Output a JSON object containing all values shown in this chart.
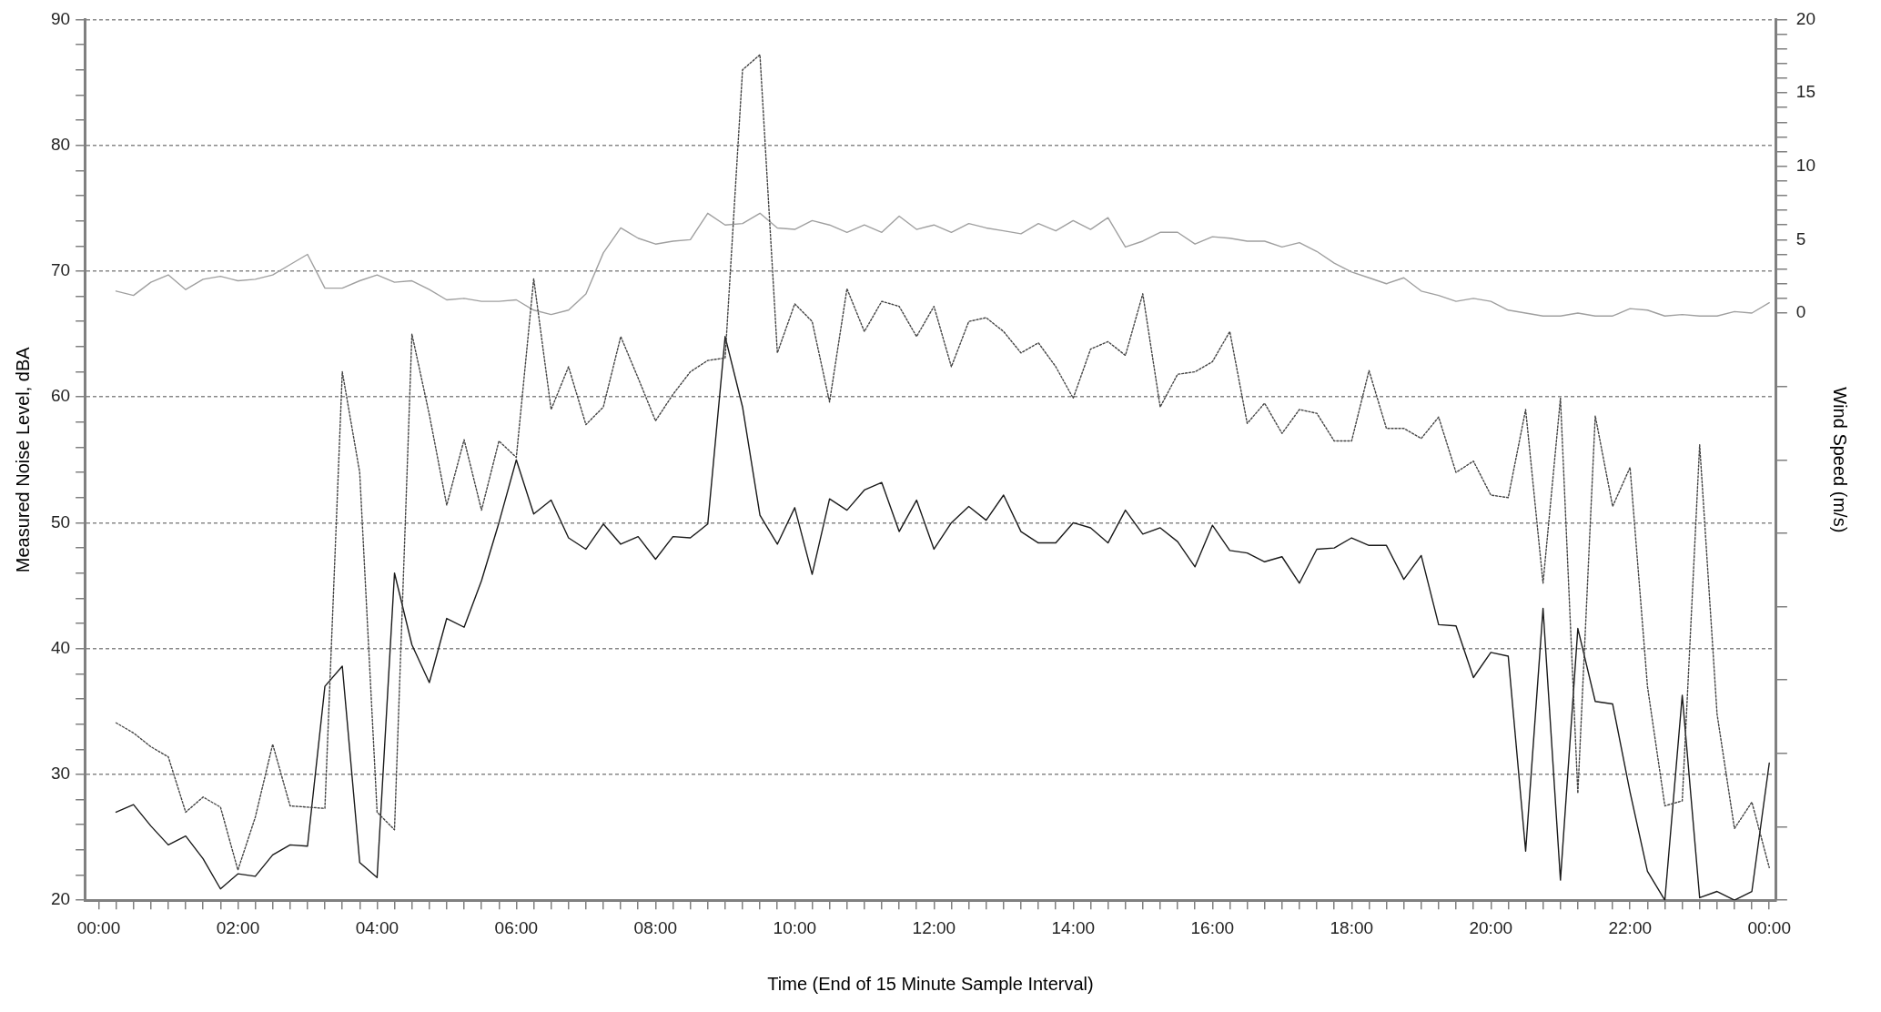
{
  "chart_data": {
    "type": "line",
    "xlabel": "Time (End of 15 Minute Sample Interval)",
    "ylabel": "Measured Noise Level, dBA",
    "y2label": "Wind Speed (m/s)",
    "grid": "y",
    "marker": "none",
    "xlim": [
      -0.2,
      24.1
    ],
    "ylim": [
      20,
      90
    ],
    "y2lim": [
      -40,
      20
    ],
    "yticks": [
      20,
      {
        "value": 22,
        "label": null
      },
      {
        "value": 24,
        "label": null
      },
      {
        "value": 26,
        "label": null
      },
      {
        "value": 28,
        "label": null
      },
      30,
      {
        "value": 32,
        "label": null
      },
      {
        "value": 34,
        "label": null
      },
      {
        "value": 36,
        "label": null
      },
      {
        "value": 38,
        "label": null
      },
      40,
      {
        "value": 42,
        "label": null
      },
      {
        "value": 44,
        "label": null
      },
      {
        "value": 46,
        "label": null
      },
      {
        "value": 48,
        "label": null
      },
      50,
      {
        "value": 52,
        "label": null
      },
      {
        "value": 54,
        "label": null
      },
      {
        "value": 56,
        "label": null
      },
      {
        "value": 58,
        "label": null
      },
      60,
      {
        "value": 62,
        "label": null
      },
      {
        "value": 64,
        "label": null
      },
      {
        "value": 66,
        "label": null
      },
      {
        "value": 68,
        "label": null
      },
      70,
      {
        "value": 72,
        "label": null
      },
      {
        "value": 74,
        "label": null
      },
      {
        "value": 76,
        "label": null
      },
      {
        "value": 78,
        "label": null
      },
      80,
      {
        "value": 82,
        "label": null
      },
      {
        "value": 84,
        "label": null
      },
      {
        "value": 86,
        "label": null
      },
      {
        "value": 88,
        "label": null
      },
      90
    ],
    "y2ticks": [
      {
        "value": -40,
        "label": null
      },
      {
        "value": -35,
        "label": null
      },
      {
        "value": -30,
        "label": null
      },
      {
        "value": -25,
        "label": null
      },
      {
        "value": -20,
        "label": null
      },
      {
        "value": -15,
        "label": null
      },
      {
        "value": -10,
        "label": null
      },
      {
        "value": -5,
        "label": null
      },
      0,
      {
        "value": 1,
        "label": null
      },
      {
        "value": 2,
        "label": null
      },
      {
        "value": 3,
        "label": null
      },
      {
        "value": 4,
        "label": null
      },
      5,
      {
        "value": 6,
        "label": null
      },
      {
        "value": 7,
        "label": null
      },
      {
        "value": 8,
        "label": null
      },
      {
        "value": 9,
        "label": null
      },
      10,
      {
        "value": 11,
        "label": null
      },
      {
        "value": 12,
        "label": null
      },
      {
        "value": 13,
        "label": null
      },
      {
        "value": 14,
        "label": null
      },
      15,
      {
        "value": 16,
        "label": null
      },
      {
        "value": 17,
        "label": null
      },
      {
        "value": 18,
        "label": null
      },
      {
        "value": 19,
        "label": null
      },
      20
    ],
    "xticks": [
      {
        "value": 0,
        "label": "00:00"
      },
      {
        "value": 0.25,
        "label": null
      },
      {
        "value": 0.5,
        "label": null
      },
      {
        "value": 0.75,
        "label": null
      },
      {
        "value": 1,
        "label": null
      },
      {
        "value": 1.25,
        "label": null
      },
      {
        "value": 1.5,
        "label": null
      },
      {
        "value": 1.75,
        "label": null
      },
      {
        "value": 2,
        "label": "02:00"
      },
      {
        "value": 2.25,
        "label": null
      },
      {
        "value": 2.5,
        "label": null
      },
      {
        "value": 2.75,
        "label": null
      },
      {
        "value": 3,
        "label": null
      },
      {
        "value": 3.25,
        "label": null
      },
      {
        "value": 3.5,
        "label": null
      },
      {
        "value": 3.75,
        "label": null
      },
      {
        "value": 4,
        "label": "04:00"
      },
      {
        "value": 4.25,
        "label": null
      },
      {
        "value": 4.5,
        "label": null
      },
      {
        "value": 4.75,
        "label": null
      },
      {
        "value": 5,
        "label": null
      },
      {
        "value": 5.25,
        "label": null
      },
      {
        "value": 5.5,
        "label": null
      },
      {
        "value": 5.75,
        "label": null
      },
      {
        "value": 6,
        "label": "06:00"
      },
      {
        "value": 6.25,
        "label": null
      },
      {
        "value": 6.5,
        "label": null
      },
      {
        "value": 6.75,
        "label": null
      },
      {
        "value": 7,
        "label": null
      },
      {
        "value": 7.25,
        "label": null
      },
      {
        "value": 7.5,
        "label": null
      },
      {
        "value": 7.75,
        "label": null
      },
      {
        "value": 8,
        "label": "08:00"
      },
      {
        "value": 8.25,
        "label": null
      },
      {
        "value": 8.5,
        "label": null
      },
      {
        "value": 8.75,
        "label": null
      },
      {
        "value": 9,
        "label": null
      },
      {
        "value": 9.25,
        "label": null
      },
      {
        "value": 9.5,
        "label": null
      },
      {
        "value": 9.75,
        "label": null
      },
      {
        "value": 10,
        "label": "10:00"
      },
      {
        "value": 10.25,
        "label": null
      },
      {
        "value": 10.5,
        "label": null
      },
      {
        "value": 10.75,
        "label": null
      },
      {
        "value": 11,
        "label": null
      },
      {
        "value": 11.25,
        "label": null
      },
      {
        "value": 11.5,
        "label": null
      },
      {
        "value": 11.75,
        "label": null
      },
      {
        "value": 12,
        "label": "12:00"
      },
      {
        "value": 12.25,
        "label": null
      },
      {
        "value": 12.5,
        "label": null
      },
      {
        "value": 12.75,
        "label": null
      },
      {
        "value": 13,
        "label": null
      },
      {
        "value": 13.25,
        "label": null
      },
      {
        "value": 13.5,
        "label": null
      },
      {
        "value": 13.75,
        "label": null
      },
      {
        "value": 14,
        "label": "14:00"
      },
      {
        "value": 14.25,
        "label": null
      },
      {
        "value": 14.5,
        "label": null
      },
      {
        "value": 14.75,
        "label": null
      },
      {
        "value": 15,
        "label": null
      },
      {
        "value": 15.25,
        "label": null
      },
      {
        "value": 15.5,
        "label": null
      },
      {
        "value": 15.75,
        "label": null
      },
      {
        "value": 16,
        "label": "16:00"
      },
      {
        "value": 16.25,
        "label": null
      },
      {
        "value": 16.5,
        "label": null
      },
      {
        "value": 16.75,
        "label": null
      },
      {
        "value": 17,
        "label": null
      },
      {
        "value": 17.25,
        "label": null
      },
      {
        "value": 17.5,
        "label": null
      },
      {
        "value": 17.75,
        "label": null
      },
      {
        "value": 18,
        "label": "18:00"
      },
      {
        "value": 18.25,
        "label": null
      },
      {
        "value": 18.5,
        "label": null
      },
      {
        "value": 18.75,
        "label": null
      },
      {
        "value": 19,
        "label": null
      },
      {
        "value": 19.25,
        "label": null
      },
      {
        "value": 19.5,
        "label": null
      },
      {
        "value": 19.75,
        "label": null
      },
      {
        "value": 20,
        "label": "20:00"
      },
      {
        "value": 20.25,
        "label": null
      },
      {
        "value": 20.5,
        "label": null
      },
      {
        "value": 20.75,
        "label": null
      },
      {
        "value": 21,
        "label": null
      },
      {
        "value": 21.25,
        "label": null
      },
      {
        "value": 21.5,
        "label": null
      },
      {
        "value": 21.75,
        "label": null
      },
      {
        "value": 22,
        "label": "22:00"
      },
      {
        "value": 22.25,
        "label": null
      },
      {
        "value": 22.5,
        "label": null
      },
      {
        "value": 22.75,
        "label": null
      },
      {
        "value": 23,
        "label": null
      },
      {
        "value": 23.25,
        "label": null
      },
      {
        "value": 23.5,
        "label": null
      },
      {
        "value": 23.75,
        "label": null
      },
      {
        "value": 24,
        "label": "00:00"
      }
    ],
    "x": [
      0.25,
      0.5,
      0.75,
      1,
      1.25,
      1.5,
      1.75,
      2,
      2.25,
      2.5,
      2.75,
      3,
      3.25,
      3.5,
      3.75,
      4,
      4.25,
      4.5,
      4.75,
      5,
      5.25,
      5.5,
      5.75,
      6,
      6.25,
      6.5,
      6.75,
      7,
      7.25,
      7.5,
      7.75,
      8,
      8.25,
      8.5,
      8.75,
      9,
      9.25,
      9.5,
      9.75,
      10,
      10.25,
      10.5,
      10.75,
      11,
      11.25,
      11.5,
      11.75,
      12,
      12.25,
      12.5,
      12.75,
      13,
      13.25,
      13.5,
      13.75,
      14,
      14.25,
      14.5,
      14.75,
      15,
      15.25,
      15.5,
      15.75,
      16,
      16.25,
      16.5,
      16.75,
      17,
      17.25,
      17.5,
      17.75,
      18,
      18.25,
      18.5,
      18.75,
      19,
      19.25,
      19.5,
      19.75,
      20,
      20.25,
      20.5,
      20.75,
      21,
      21.25,
      21.5,
      21.75,
      22,
      22.25,
      22.5,
      22.75,
      23,
      23.25,
      23.5,
      23.75,
      24
    ],
    "series": [
      {
        "color": "#444444",
        "line_style": "dotted",
        "values": [
          34.1,
          33.3,
          32.2,
          31.4,
          27,
          28.2,
          27.4,
          22.4,
          26.6,
          32.4,
          27.5,
          27.4,
          27.3,
          62,
          54,
          27,
          25.6,
          65,
          58.6,
          51.4,
          56.6,
          51,
          56.5,
          55.2,
          69.4,
          59,
          62.4,
          57.8,
          59.2,
          64.8,
          61.5,
          58.1,
          60.2,
          62,
          62.9,
          63.1,
          86,
          87.2,
          63.5,
          67.4,
          66,
          59.6,
          68.6,
          65.2,
          67.6,
          67.2,
          64.8,
          67.2,
          62.4,
          66,
          66.3,
          65.2,
          63.5,
          64.3,
          62.4,
          59.9,
          63.8,
          64.4,
          63.3,
          68.2,
          59.2,
          61.8,
          62,
          62.8,
          65.2,
          57.9,
          59.5,
          57.1,
          59,
          58.7,
          56.5,
          56.5,
          62.1,
          57.5,
          57.5,
          56.7,
          58.4,
          54,
          54.9,
          52.2,
          52,
          59,
          45.2,
          59.9,
          28.5,
          58.5,
          51.3,
          54.4,
          37,
          27.5,
          27.9,
          56.2,
          34.8,
          25.7,
          27.8,
          22.6
        ]
      },
      {
        "color": "#1a1a1a",
        "line_style": "solid",
        "values": [
          27,
          27.6,
          25.9,
          24.4,
          25.1,
          23.3,
          20.9,
          22.1,
          21.9,
          23.6,
          24.4,
          24.3,
          37,
          38.6,
          23,
          21.8,
          46,
          40.3,
          37.3,
          42.4,
          41.7,
          45.4,
          50,
          55,
          50.7,
          51.8,
          48.8,
          47.9,
          49.9,
          48.3,
          48.9,
          47.1,
          48.9,
          48.8,
          49.9,
          64.8,
          59.2,
          50.6,
          48.3,
          51.2,
          45.9,
          51.9,
          51,
          52.6,
          53.2,
          49.3,
          51.8,
          47.9,
          50,
          51.3,
          50.2,
          52.2,
          49.3,
          48.4,
          48.4,
          50,
          49.6,
          48.4,
          51,
          49.1,
          49.6,
          48.5,
          46.5,
          49.8,
          47.8,
          47.6,
          46.9,
          47.3,
          45.2,
          47.9,
          48,
          48.8,
          48.2,
          48.2,
          45.5,
          47.4,
          41.9,
          41.8,
          37.7,
          39.7,
          39.4,
          23.9,
          43.2,
          21.6,
          41.6,
          35.8,
          35.6,
          28.6,
          22.3,
          20,
          36.3,
          20.2,
          20.7,
          20,
          20.7,
          30.9
        ]
      },
      {
        "color": "#a0a0a0",
        "line_style": "solid",
        "axis": "y2",
        "values": [
          1.5,
          1.2,
          2.1,
          2.6,
          1.6,
          2.3,
          2.5,
          2.2,
          2.3,
          2.6,
          3.3,
          4,
          1.7,
          1.7,
          2.2,
          2.6,
          2.1,
          2.2,
          1.6,
          0.9,
          1,
          0.8,
          0.8,
          0.9,
          0.2,
          -0.1,
          0.2,
          1.3,
          4.1,
          5.8,
          5.1,
          4.7,
          4.9,
          5,
          6.8,
          6,
          6.1,
          6.8,
          5.8,
          5.7,
          6.3,
          6,
          5.5,
          6,
          5.5,
          6.6,
          5.7,
          6,
          5.5,
          6.1,
          5.8,
          5.6,
          5.4,
          6.1,
          5.6,
          6.3,
          5.7,
          6.5,
          4.5,
          4.9,
          5.5,
          5.5,
          4.7,
          5.2,
          5.1,
          4.9,
          4.9,
          4.5,
          4.8,
          4.2,
          3.4,
          2.8,
          2.4,
          2,
          2.4,
          1.5,
          1.2,
          0.8,
          1,
          0.8,
          0.2,
          0,
          -0.2,
          -0.2,
          0,
          -0.2,
          -0.2,
          0.3,
          0.2,
          -0.2,
          -0.1,
          -0.2,
          -0.2,
          0.1,
          0,
          0.7
        ]
      }
    ]
  }
}
